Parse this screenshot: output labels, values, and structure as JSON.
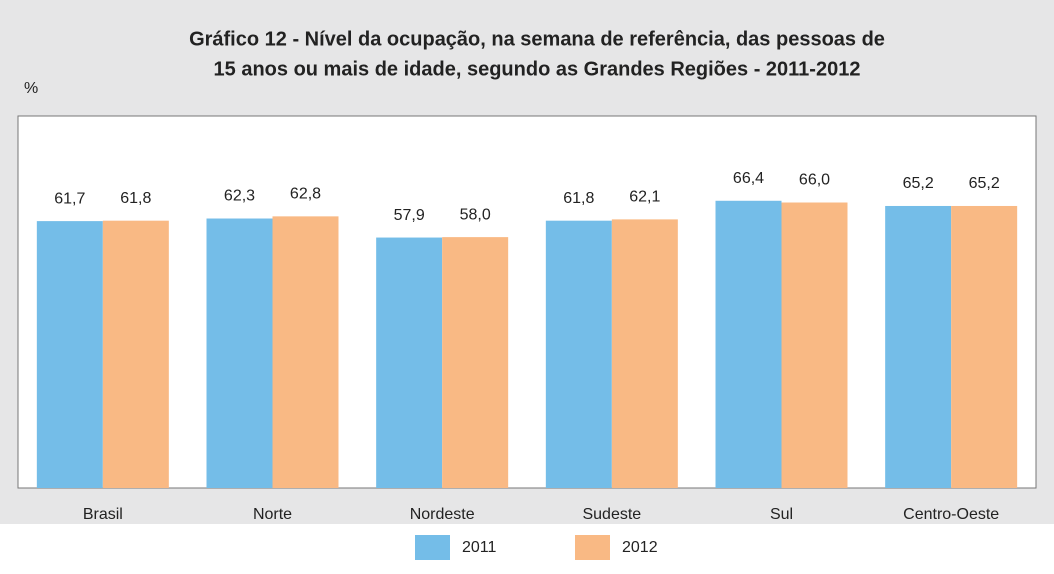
{
  "chart_data": {
    "type": "bar",
    "title": [
      "Gráfico 12 - Nível da ocupação, na semana de referência, das pessoas de",
      "15 anos ou mais de idade, segundo as Grandes Regiões - 2011-2012"
    ],
    "y_label": "%",
    "categories": [
      "Brasil",
      "Norte",
      "Nordeste",
      "Sudeste",
      "Sul",
      "Centro-Oeste"
    ],
    "series": [
      {
        "name": "2011",
        "color": "#74bde8",
        "values": [
          61.7,
          62.3,
          57.9,
          61.8,
          66.4,
          65.2
        ],
        "value_labels": [
          "61,7",
          "62,3",
          "57,9",
          "61,8",
          "66,4",
          "65,2"
        ]
      },
      {
        "name": "2012",
        "color": "#f9b984",
        "values": [
          61.8,
          62.8,
          58.0,
          62.1,
          66.0,
          65.2
        ],
        "value_labels": [
          "61,8",
          "62,8",
          "58,0",
          "62,1",
          "66,0",
          "65,2"
        ]
      }
    ],
    "ylim": [
      0,
      86
    ],
    "legend": "bottom"
  }
}
